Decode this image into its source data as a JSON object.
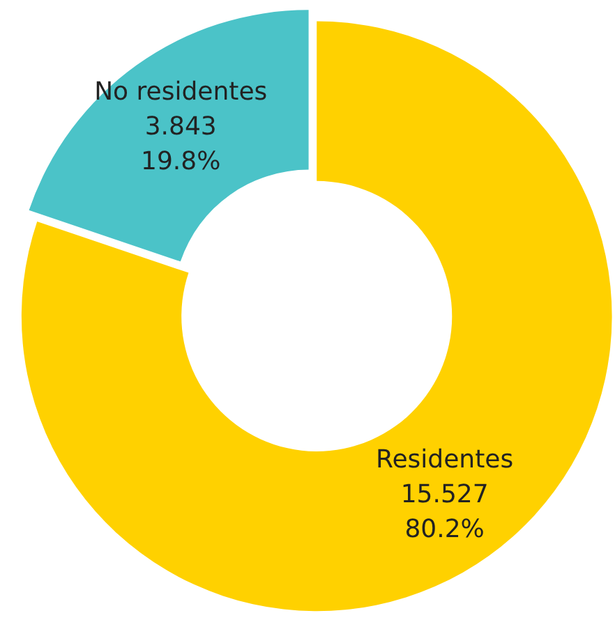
{
  "chart_data": {
    "type": "donut",
    "categories": [
      "Residentes",
      "No residentes"
    ],
    "values": [
      80.2,
      19.8
    ],
    "colors": [
      "#ffd100",
      "#4bc3c8"
    ],
    "value_labels": [
      "80.2%",
      "19.8%"
    ],
    "annotations": [
      "15.527",
      "3.843"
    ],
    "legend": false
  }
}
